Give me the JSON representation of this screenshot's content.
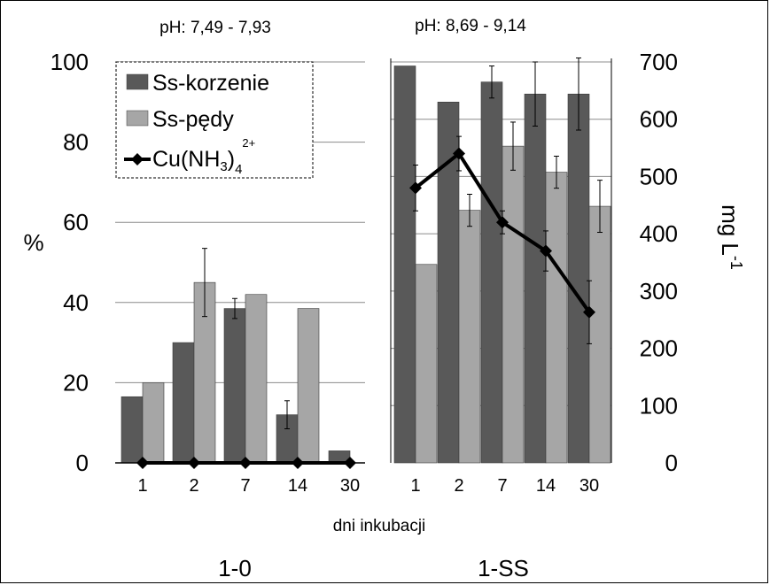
{
  "chart_data": [
    {
      "type": "bar",
      "panel": "1-0",
      "title": "pH: 7,49 - 7,93",
      "xlabel": "1-0",
      "ylabel": "%",
      "ylim": [
        0,
        100
      ],
      "yticks": [
        "0",
        "20",
        "40",
        "60",
        "80",
        "100"
      ],
      "categories": [
        "1",
        "2",
        "7",
        "14",
        "30"
      ],
      "series": [
        {
          "name": "Ss-korzenie",
          "values": [
            16.5,
            30,
            38.5,
            12,
            3
          ],
          "errors": [
            0,
            0,
            2.5,
            3.5,
            0
          ],
          "color": "#595959"
        },
        {
          "name": "Ss-pędy",
          "values": [
            20,
            45,
            42,
            38.5,
            0
          ],
          "errors": [
            0,
            8.5,
            0,
            0,
            0
          ],
          "color": "#a6a6a6"
        },
        {
          "name": "Cu(NH3)4 2+",
          "type": "line",
          "axis": "right",
          "values": [
            0,
            0,
            0,
            0,
            0
          ],
          "color": "#000000"
        }
      ]
    },
    {
      "type": "bar",
      "panel": "1-SS",
      "title": "pH: 8,69 - 9,14",
      "xlabel": "1-SS",
      "ylabel": "mg L-1",
      "ylim": [
        0,
        700
      ],
      "yticks": [
        "0",
        "100",
        "200",
        "300",
        "400",
        "500",
        "600",
        "700"
      ],
      "categories": [
        "1",
        "2",
        "7",
        "14",
        "30"
      ],
      "series": [
        {
          "name": "Ss-korzenie",
          "values": [
            99,
            90,
            95,
            92,
            92
          ],
          "errors": [
            0,
            0,
            4,
            8,
            9
          ],
          "color": "#595959"
        },
        {
          "name": "Ss-pędy",
          "values": [
            49.5,
            63,
            79,
            72.5,
            64
          ],
          "errors": [
            0,
            4,
            6,
            4,
            6.5
          ],
          "color": "#a6a6a6"
        },
        {
          "name": "Cu(NH3)4 2+",
          "type": "line",
          "axis": "right",
          "values": [
            480,
            540,
            420,
            370,
            263
          ],
          "errors": [
            40,
            30,
            20,
            35,
            55
          ],
          "color": "#000000"
        }
      ]
    }
  ],
  "shared_xlabel": "dni inkubacji",
  "legend": {
    "position": "top-left",
    "items": [
      {
        "label": "Ss-korzenie",
        "color": "#595959",
        "kind": "bar"
      },
      {
        "label": "Ss-pędy",
        "color": "#a6a6a6",
        "kind": "bar"
      },
      {
        "label_main": "Cu(NH",
        "label_sub": "3",
        "label_close": ")",
        "label_sub2": "4",
        "label_sup": "2+",
        "color": "#000000",
        "kind": "line"
      }
    ]
  }
}
